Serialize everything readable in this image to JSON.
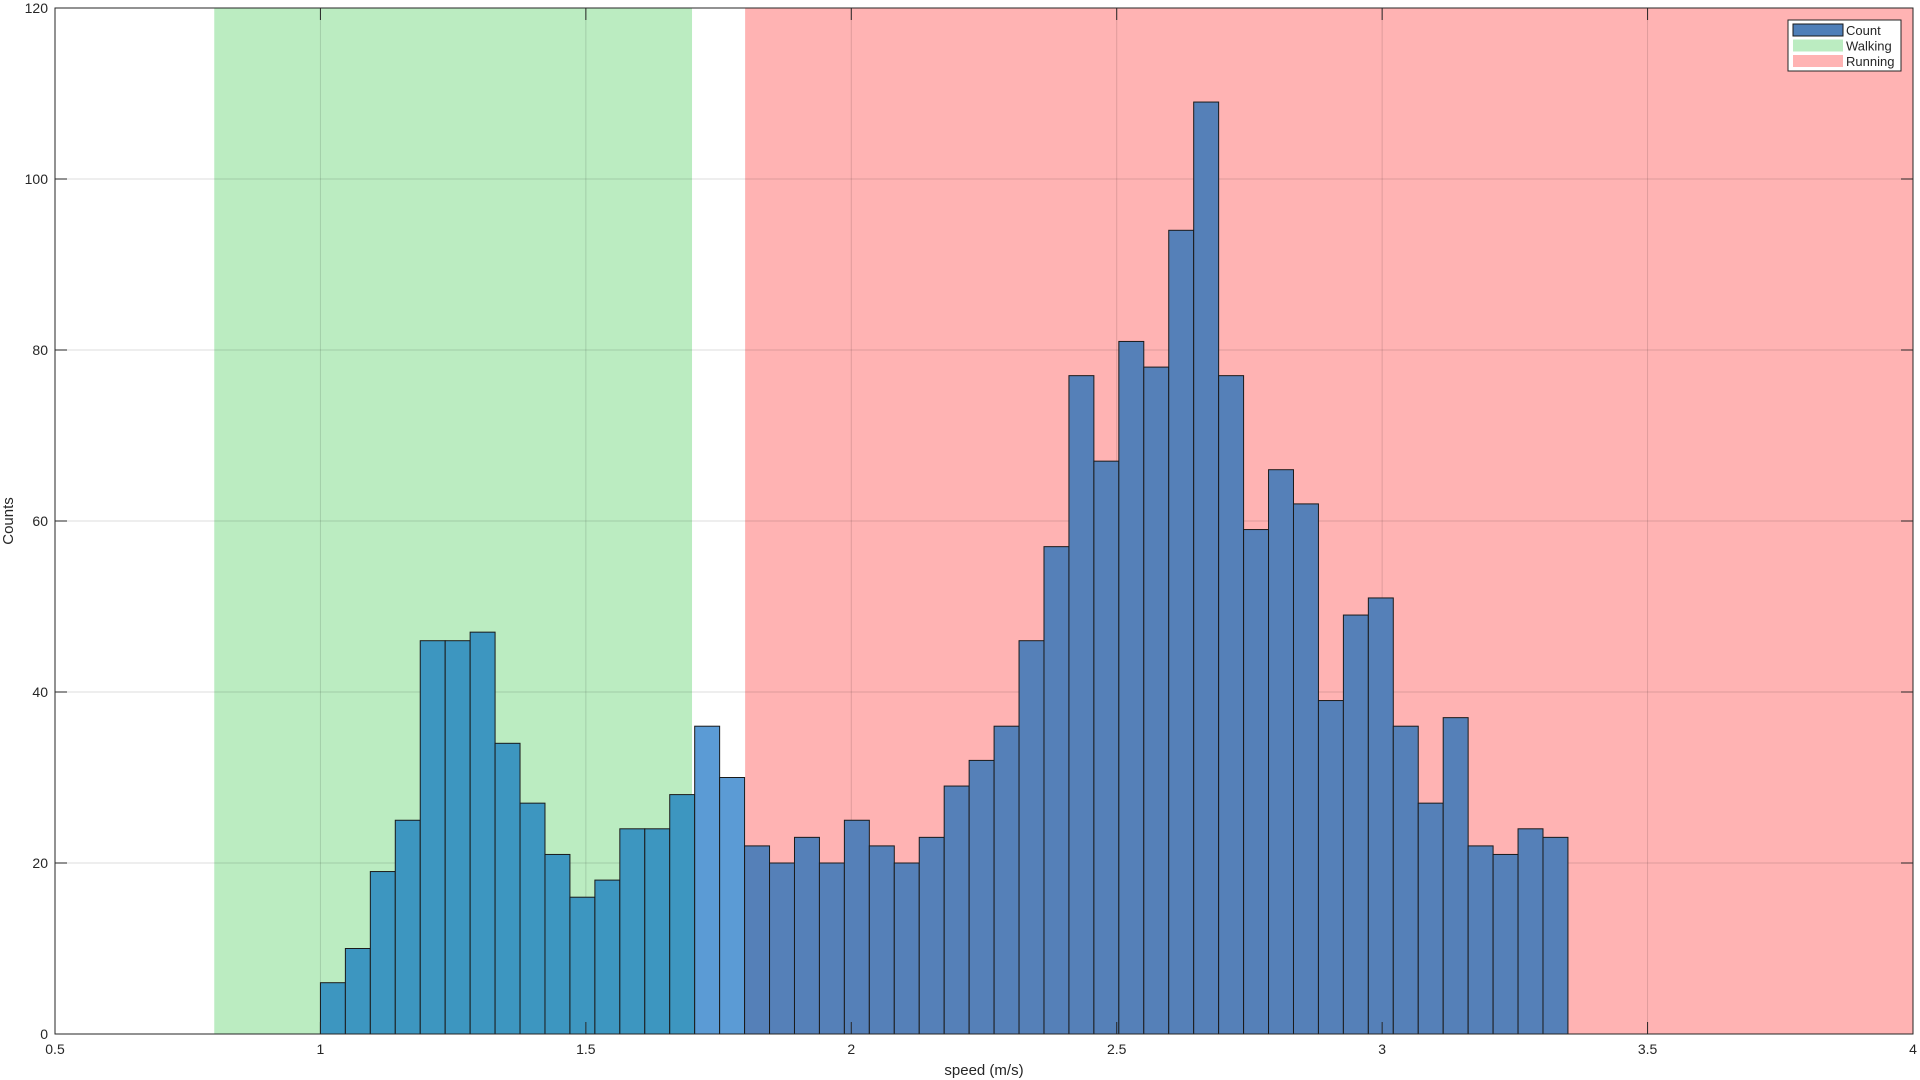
{
  "chart_data": {
    "type": "bar",
    "xlabel": "speed (m/s)",
    "ylabel": "Counts",
    "xlim": [
      0.5,
      4
    ],
    "ylim": [
      0,
      120
    ],
    "x_ticks": [
      0.5,
      1,
      1.5,
      2,
      2.5,
      3,
      3.5,
      4
    ],
    "x_tick_labels": [
      "0.5",
      "1",
      "1.5",
      "2",
      "2.5",
      "3",
      "3.5",
      "4"
    ],
    "y_ticks": [
      0,
      20,
      40,
      60,
      80,
      100,
      120
    ],
    "y_tick_labels": [
      "0",
      "20",
      "40",
      "60",
      "80",
      "100",
      "120"
    ],
    "grid": true,
    "legend_position": "top-right",
    "legend": [
      {
        "label": "Count",
        "color": "#4f7fb8"
      },
      {
        "label": "Walking",
        "color": "#bbecc1"
      },
      {
        "label": "Running",
        "color": "#ffb3b3"
      }
    ],
    "regions": [
      {
        "name": "Walking",
        "x_start": 0.8,
        "x_end": 1.7,
        "color": "#bbecc1"
      },
      {
        "name": "Running",
        "x_start": 1.8,
        "x_end": 4.0,
        "color": "#ffb3b3"
      }
    ],
    "bins": {
      "start": 1.0,
      "width": 0.047,
      "edge_color": "#1a1a1a",
      "colors": {
        "in_walking": "#3d96c0",
        "gap": "#5b9bd5",
        "in_running": "#5580b8"
      }
    },
    "series": [
      {
        "name": "Count",
        "values": [
          6,
          10,
          19,
          25,
          46,
          46,
          47,
          34,
          27,
          21,
          16,
          18,
          24,
          24,
          28,
          36,
          30,
          22,
          20,
          23,
          20,
          25,
          22,
          20,
          23,
          29,
          32,
          36,
          46,
          57,
          77,
          67,
          81,
          78,
          94,
          109,
          77,
          59,
          66,
          62,
          39,
          49,
          51,
          36,
          27,
          37,
          22,
          21,
          24,
          23
        ]
      }
    ]
  }
}
